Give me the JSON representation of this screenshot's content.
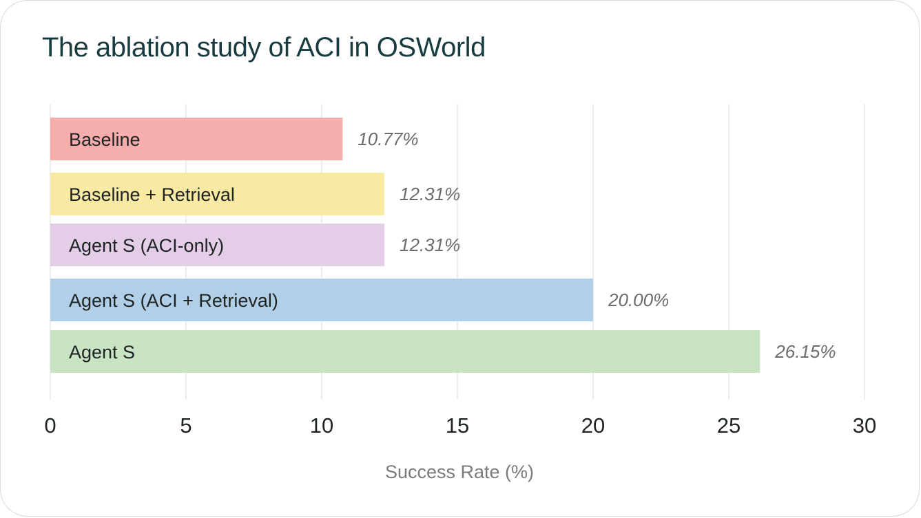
{
  "chart_data": {
    "type": "bar",
    "orientation": "horizontal",
    "title": "The ablation study of ACI in OSWorld",
    "xlabel": "Success Rate (%)",
    "ylabel": "",
    "xlim": [
      0,
      30
    ],
    "xticks": [
      0,
      5,
      10,
      15,
      20,
      25,
      30
    ],
    "grid": true,
    "categories": [
      "Baseline",
      "Baseline + Retrieval",
      "Agent S (ACI-only)",
      "Agent S (ACI + Retrieval)",
      "Agent S"
    ],
    "values": [
      10.77,
      12.31,
      12.31,
      20.0,
      26.15
    ],
    "value_labels": [
      "10.77%",
      "12.31%",
      "12.31%",
      "20.00%",
      "26.15%"
    ],
    "colors": [
      "#f6aeac",
      "#f8e9a3",
      "#e4cde6",
      "#b1cfe6",
      "#c8e4c3"
    ]
  }
}
